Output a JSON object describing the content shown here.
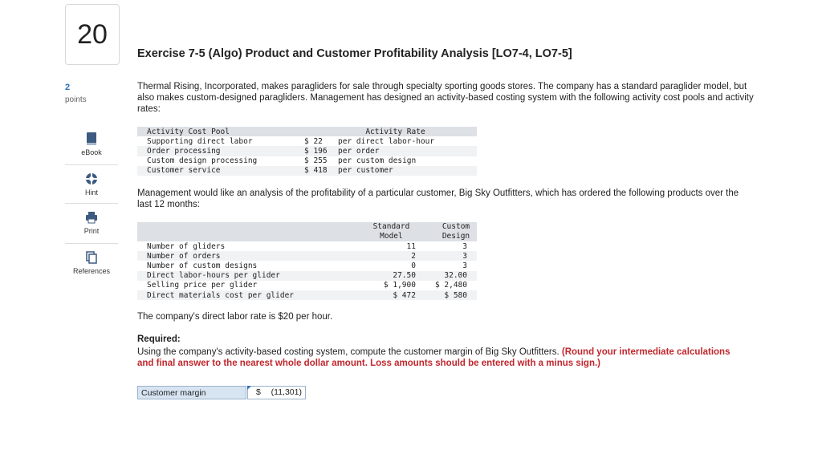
{
  "question": {
    "number": "20",
    "points_value": "2",
    "points_label": "points",
    "title": "Exercise 7-5 (Algo) Product and Customer Profitability Analysis [LO7-4, LO7-5]",
    "intro": "Thermal Rising, Incorporated, makes paragliders for sale through specialty sporting goods stores. The company has a standard paraglider model, but also makes custom-designed paragliders. Management has designed an activity-based costing system with the following activity cost pools and activity rates:",
    "mid_text": "Management would like an analysis of the profitability of a particular customer, Big Sky Outfitters, which has ordered the following products over the last 12 months:",
    "labor_text": "The company's direct labor rate is $20 per hour.",
    "required_label": "Required:",
    "required_text": "Using the company's activity-based costing system, compute the customer margin of Big Sky Outfitters.",
    "required_note": "(Round your intermediate calculations and final answer to the nearest whole dollar amount. Loss amounts should be entered with a minus sign.)"
  },
  "tools": [
    {
      "label": "eBook",
      "icon": "book-icon"
    },
    {
      "label": "Hint",
      "icon": "hint-icon"
    },
    {
      "label": "Print",
      "icon": "print-icon"
    },
    {
      "label": "References",
      "icon": "references-icon"
    }
  ],
  "activity_table": {
    "headers": [
      "Activity Cost Pool",
      "Activity Rate"
    ],
    "rows": [
      {
        "pool": "Supporting direct labor",
        "rate": "$ 22",
        "unit": "per direct labor-hour"
      },
      {
        "pool": "Order processing",
        "rate": "$ 196",
        "unit": "per order"
      },
      {
        "pool": "Custom design processing",
        "rate": "$ 255",
        "unit": "per custom design"
      },
      {
        "pool": "Customer service",
        "rate": "$ 418",
        "unit": "per customer"
      }
    ]
  },
  "product_table": {
    "headers": [
      "Standard\nModel",
      "Custom\nDesign"
    ],
    "rows": [
      {
        "label": "Number of gliders",
        "standard": "11",
        "custom": "3"
      },
      {
        "label": "Number of orders",
        "standard": "2",
        "custom": "3"
      },
      {
        "label": "Number of custom designs",
        "standard": "0",
        "custom": "3"
      },
      {
        "label": "Direct labor-hours per glider",
        "standard": "27.50",
        "custom": "32.00"
      },
      {
        "label": "Selling price per glider",
        "standard": "$ 1,900",
        "custom": "$ 2,480"
      },
      {
        "label": "Direct materials cost per glider",
        "standard": "$ 472",
        "custom": "$ 580"
      }
    ]
  },
  "answer": {
    "label": "Customer margin",
    "currency": "$",
    "value": "(11,301)"
  }
}
